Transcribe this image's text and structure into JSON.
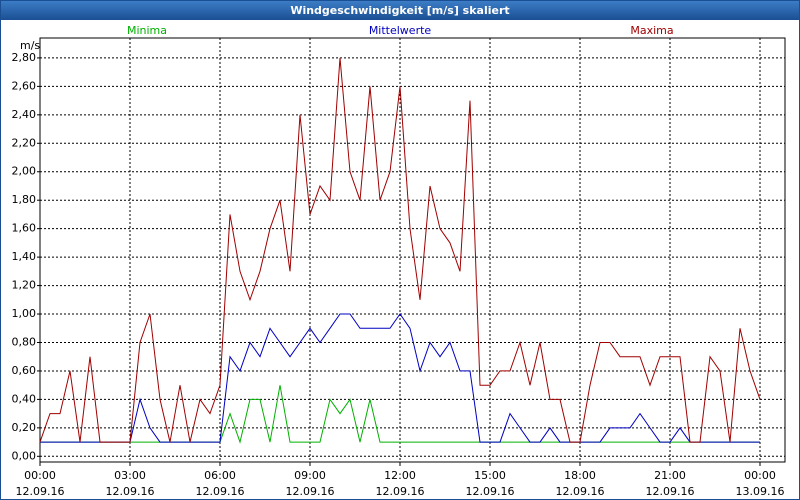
{
  "window_title": "Windgeschwindigkeit [m/s] skaliert",
  "chart_data": {
    "type": "line",
    "y_label": "m/s",
    "x": [
      0,
      20,
      40,
      60,
      80,
      100,
      120,
      140,
      160,
      180,
      200,
      220,
      240,
      260,
      280,
      300,
      320,
      340,
      360,
      380,
      400,
      420,
      440,
      460,
      480,
      500,
      520,
      540,
      560,
      580,
      600,
      620,
      640,
      660,
      680,
      700,
      720,
      740,
      760,
      780,
      800,
      820,
      840,
      860,
      880,
      900,
      920,
      940,
      960,
      980,
      1000,
      1020,
      1040,
      1060,
      1080,
      1100,
      1120,
      1140,
      1160,
      1180,
      1200,
      1220,
      1240,
      1260,
      1280,
      1300,
      1320,
      1340,
      1360,
      1380,
      1400,
      1420,
      1440
    ],
    "series": [
      {
        "name": "Minima",
        "color": "#00b000",
        "values": [
          0.1,
          0.1,
          0.1,
          0.1,
          0.1,
          0.1,
          0.1,
          0.1,
          0.1,
          0.1,
          0.1,
          0.1,
          0.1,
          0.1,
          0.1,
          0.1,
          0.1,
          0.1,
          0.1,
          0.3,
          0.1,
          0.4,
          0.4,
          0.1,
          0.5,
          0.1,
          0.1,
          0.1,
          0.1,
          0.4,
          0.3,
          0.4,
          0.1,
          0.4,
          0.1,
          0.1,
          0.1,
          0.1,
          0.1,
          0.1,
          0.1,
          0.1,
          0.1,
          0.1,
          0.1,
          0.1,
          0.1,
          0.1,
          0.1,
          0.1,
          0.1,
          0.1,
          0.1,
          0.1,
          0.1,
          0.1,
          0.1,
          0.1,
          0.1,
          0.1,
          0.1,
          0.1,
          0.1,
          0.1,
          0.1,
          0.1,
          0.1,
          0.1,
          0.1,
          0.1,
          0.1,
          0.1,
          0.1
        ]
      },
      {
        "name": "Mittelwerte",
        "color": "#0000c0",
        "values": [
          0.1,
          0.1,
          0.1,
          0.1,
          0.1,
          0.1,
          0.1,
          0.1,
          0.1,
          0.1,
          0.4,
          0.2,
          0.1,
          0.1,
          0.1,
          0.1,
          0.1,
          0.1,
          0.1,
          0.7,
          0.6,
          0.8,
          0.7,
          0.9,
          0.8,
          0.7,
          0.8,
          0.9,
          0.8,
          0.9,
          1.0,
          1.0,
          0.9,
          0.9,
          0.9,
          0.9,
          1.0,
          0.9,
          0.6,
          0.8,
          0.7,
          0.8,
          0.6,
          0.6,
          0.1,
          0.1,
          0.1,
          0.3,
          0.2,
          0.1,
          0.1,
          0.2,
          0.1,
          0.1,
          0.1,
          0.1,
          0.1,
          0.2,
          0.2,
          0.2,
          0.3,
          0.2,
          0.1,
          0.1,
          0.2,
          0.1,
          0.1,
          0.1,
          0.1,
          0.1,
          0.1,
          0.1,
          0.1
        ]
      },
      {
        "name": "Maxima",
        "color": "#a00000",
        "values": [
          0.1,
          0.3,
          0.3,
          0.6,
          0.1,
          0.7,
          0.1,
          0.1,
          0.1,
          0.1,
          0.8,
          1.0,
          0.4,
          0.1,
          0.5,
          0.1,
          0.4,
          0.3,
          0.5,
          1.7,
          1.3,
          1.1,
          1.3,
          1.6,
          1.8,
          1.3,
          2.4,
          1.7,
          1.9,
          1.8,
          2.8,
          2.0,
          1.8,
          2.6,
          1.8,
          2.0,
          2.6,
          1.6,
          1.1,
          1.9,
          1.6,
          1.5,
          1.3,
          2.5,
          0.5,
          0.5,
          0.6,
          0.6,
          0.8,
          0.5,
          0.8,
          0.4,
          0.4,
          0.1,
          0.1,
          0.5,
          0.8,
          0.8,
          0.7,
          0.7,
          0.7,
          0.5,
          0.7,
          0.7,
          0.7,
          0.1,
          0.1,
          0.7,
          0.6,
          0.1,
          0.9,
          0.6,
          0.4
        ]
      }
    ],
    "xlim": [
      0,
      1490
    ],
    "xticks": [
      {
        "value": 0,
        "label": "00:00\n12.09.16"
      },
      {
        "value": 180,
        "label": "03:00\n12.09.16"
      },
      {
        "value": 360,
        "label": "06:00\n12.09.16"
      },
      {
        "value": 540,
        "label": "09:00\n12.09.16"
      },
      {
        "value": 720,
        "label": "12:00\n12.09.16"
      },
      {
        "value": 900,
        "label": "15:00\n12.09.16"
      },
      {
        "value": 1080,
        "label": "18:00\n12.09.16"
      },
      {
        "value": 1260,
        "label": "21:00\n12.09.16"
      },
      {
        "value": 1440,
        "label": "00:00\n13.09.16"
      }
    ],
    "ylim": [
      -0.04,
      2.94
    ],
    "yticks": [
      {
        "value": 0,
        "label": "0,00"
      },
      {
        "value": 0.2,
        "label": "0,20"
      },
      {
        "value": 0.4,
        "label": "0,40"
      },
      {
        "value": 0.6,
        "label": "0,60"
      },
      {
        "value": 0.8,
        "label": "0,80"
      },
      {
        "value": 1.0,
        "label": "1,00"
      },
      {
        "value": 1.2,
        "label": "1,20"
      },
      {
        "value": 1.4,
        "label": "1,40"
      },
      {
        "value": 1.6,
        "label": "1,60"
      },
      {
        "value": 1.8,
        "label": "1,80"
      },
      {
        "value": 2.0,
        "label": "2,00"
      },
      {
        "value": 2.2,
        "label": "2,20"
      },
      {
        "value": 2.4,
        "label": "2,40"
      },
      {
        "value": 2.6,
        "label": "2,60"
      },
      {
        "value": 2.8,
        "label": "2,80"
      }
    ],
    "grid": true
  }
}
